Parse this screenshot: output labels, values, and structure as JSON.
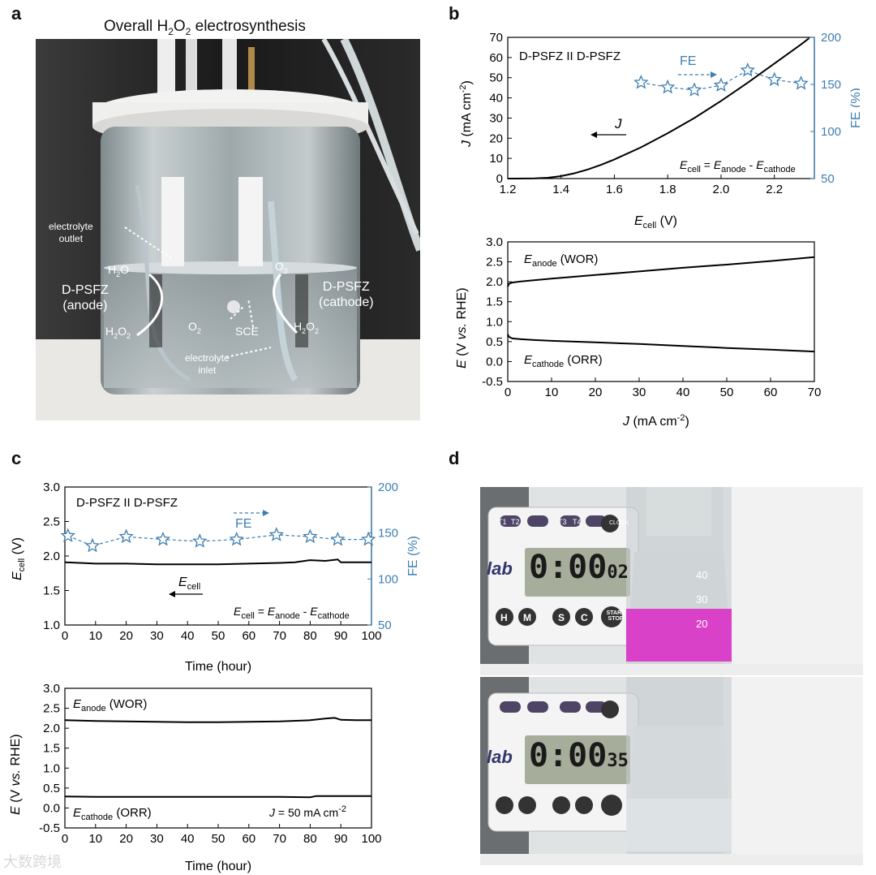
{
  "panel_letters": {
    "a": "a",
    "b": "b",
    "c": "c",
    "d": "d"
  },
  "panel_a": {
    "title_parts": [
      "Overall H",
      "2",
      "O",
      "2",
      " electrosynthesis"
    ],
    "labels": {
      "electrolyte_outlet": [
        "electrolyte",
        "outlet"
      ],
      "electrolyte_inlet": [
        "electrolyte",
        "inlet"
      ],
      "anode": [
        "D-PSFZ",
        "(anode)"
      ],
      "cathode": [
        "D-PSFZ",
        "(cathode)"
      ],
      "h2o": [
        "H",
        "2",
        "O"
      ],
      "o2_top": [
        "O",
        "2"
      ],
      "o2_mid": [
        "O",
        "2"
      ],
      "sce": "SCE",
      "h2o2_left": [
        "H",
        "2",
        "O",
        "2"
      ],
      "h2o2_right": [
        "H",
        "2",
        "O",
        "2"
      ]
    }
  },
  "panel_d": {
    "timer_top": {
      "brand": "lab",
      "digits": "0:00",
      "small": "02",
      "buttons": [
        "T1",
        "T2",
        "T3",
        "T4",
        "CLOCK",
        "H",
        "M",
        "S",
        "C",
        "START STOP"
      ]
    },
    "timer_bottom": {
      "brand": "lab",
      "digits": "0:00",
      "small": "35"
    },
    "bottle_marks": [
      "40",
      "30",
      "20"
    ]
  },
  "chart_data": [
    {
      "id": "b_top",
      "type": "line",
      "title": "D-PSFZ II D-PSFZ",
      "xlabel": [
        "E",
        "cell",
        " (V)"
      ],
      "ylabel": [
        "J",
        " (mA cm",
        "-2",
        ")"
      ],
      "y2label": "FE (%)",
      "xlim": [
        1.2,
        2.35
      ],
      "ylim": [
        0,
        70
      ],
      "y2lim": [
        50,
        200
      ],
      "xticks": [
        "1.2",
        "1.4",
        "1.6",
        "1.8",
        "2.0",
        "2.2"
      ],
      "xtickvals": [
        1.2,
        1.4,
        1.6,
        1.8,
        2.0,
        2.2
      ],
      "yticks": [
        "0",
        "10",
        "20",
        "30",
        "40",
        "50",
        "60",
        "70"
      ],
      "y2ticks": [
        "50",
        "100",
        "150",
        "200"
      ],
      "series": [
        {
          "name": "J",
          "axis": "left",
          "style": "solid",
          "x": [
            1.2,
            1.3,
            1.35,
            1.4,
            1.45,
            1.5,
            1.55,
            1.6,
            1.7,
            1.8,
            1.9,
            2.0,
            2.1,
            2.2,
            2.3,
            2.33
          ],
          "y": [
            0,
            0.1,
            0.4,
            1.2,
            2.6,
            4.5,
            6.8,
            9.5,
            15.5,
            22.5,
            30,
            38.5,
            47.5,
            57,
            66.5,
            69.5
          ]
        },
        {
          "name": "FE",
          "axis": "right",
          "style": "dashed-star",
          "x": [
            1.7,
            1.8,
            1.9,
            2.0,
            2.1,
            2.2,
            2.3
          ],
          "y": [
            152,
            147,
            144,
            149,
            165,
            155,
            151
          ]
        }
      ],
      "annotations": {
        "J": "J",
        "FE": "FE",
        "equation": [
          "E",
          "cell",
          " = ",
          "E",
          "anode",
          " - ",
          "E",
          "cathode"
        ]
      }
    },
    {
      "id": "b_bottom",
      "type": "line",
      "xlabel": [
        "J",
        " (mA cm",
        "-2",
        ")"
      ],
      "ylabel": [
        "E",
        " (V ",
        "vs.",
        " RHE)"
      ],
      "xlim": [
        0,
        70
      ],
      "ylim": [
        -0.5,
        3.0
      ],
      "xticks": [
        "0",
        "10",
        "20",
        "30",
        "40",
        "50",
        "60",
        "70"
      ],
      "yticks": [
        "-0.5",
        "0.0",
        "0.5",
        "1.0",
        "1.5",
        "2.0",
        "2.5",
        "3.0"
      ],
      "series": [
        {
          "name": "E_anode (WOR)",
          "x": [
            0,
            0.3,
            1,
            3,
            6,
            10,
            20,
            30,
            40,
            50,
            60,
            70
          ],
          "y": [
            1.88,
            1.95,
            1.98,
            2.01,
            2.04,
            2.08,
            2.17,
            2.26,
            2.35,
            2.43,
            2.52,
            2.62
          ]
        },
        {
          "name": "E_cathode (ORR)",
          "x": [
            0,
            0.3,
            1,
            3,
            6,
            10,
            20,
            30,
            40,
            50,
            60,
            70
          ],
          "y": [
            0.68,
            0.62,
            0.58,
            0.56,
            0.54,
            0.52,
            0.48,
            0.44,
            0.39,
            0.34,
            0.3,
            0.25
          ]
        }
      ],
      "annotations": {
        "anode": [
          "E",
          "anode",
          " (WOR)"
        ],
        "cathode": [
          "E",
          "cathode",
          " (ORR)"
        ]
      }
    },
    {
      "id": "c_top",
      "type": "line",
      "title": "D-PSFZ II D-PSFZ",
      "xlabel": [
        "Time (hour)"
      ],
      "ylabel": [
        "E",
        "cell",
        " (V)"
      ],
      "y2label": "FE (%)",
      "xlim": [
        0,
        100
      ],
      "ylim": [
        1.0,
        3.0
      ],
      "y2lim": [
        50,
        200
      ],
      "xticks": [
        "0",
        "10",
        "20",
        "30",
        "40",
        "50",
        "60",
        "70",
        "80",
        "90",
        "100"
      ],
      "yticks": [
        "1.0",
        "1.5",
        "2.0",
        "2.5",
        "3.0"
      ],
      "y2ticks": [
        "50",
        "100",
        "150",
        "200"
      ],
      "series": [
        {
          "name": "Ecell",
          "axis": "left",
          "style": "solid",
          "x": [
            0,
            5,
            10,
            20,
            30,
            40,
            50,
            60,
            70,
            75,
            80,
            85,
            89,
            90,
            95,
            100
          ],
          "y": [
            1.91,
            1.9,
            1.89,
            1.89,
            1.88,
            1.88,
            1.88,
            1.89,
            1.9,
            1.91,
            1.94,
            1.93,
            1.95,
            1.91,
            1.91,
            1.91
          ]
        },
        {
          "name": "FE",
          "axis": "right",
          "style": "dashed-star",
          "x": [
            1,
            9,
            20,
            32,
            44,
            56,
            69,
            80,
            89,
            99
          ],
          "y": [
            147,
            136,
            146,
            143,
            141,
            143,
            148,
            146,
            143,
            143
          ]
        }
      ],
      "annotations": {
        "Ecell": [
          "E",
          "cell"
        ],
        "FE": "FE",
        "equation": [
          "E",
          "cell",
          " = ",
          "E",
          "anode",
          " - ",
          "E",
          "cathode"
        ]
      }
    },
    {
      "id": "c_bottom",
      "type": "line",
      "xlabel": [
        "Time (hour)"
      ],
      "ylabel": [
        "E",
        " (V ",
        "vs.",
        " RHE)"
      ],
      "xlim": [
        0,
        100
      ],
      "ylim": [
        -0.5,
        3.0
      ],
      "xticks": [
        "0",
        "10",
        "20",
        "30",
        "40",
        "50",
        "60",
        "70",
        "80",
        "90",
        "100"
      ],
      "yticks": [
        "-0.5",
        "0.0",
        "0.5",
        "1.0",
        "1.5",
        "2.0",
        "2.5",
        "3.0"
      ],
      "series": [
        {
          "name": "E_anode (WOR)",
          "x": [
            0,
            10,
            20,
            30,
            40,
            50,
            60,
            70,
            80,
            85,
            88,
            90,
            95,
            100
          ],
          "y": [
            2.2,
            2.18,
            2.17,
            2.16,
            2.15,
            2.15,
            2.16,
            2.17,
            2.2,
            2.24,
            2.26,
            2.21,
            2.2,
            2.2
          ]
        },
        {
          "name": "E_cathode (ORR)",
          "x": [
            0,
            10,
            20,
            30,
            40,
            50,
            60,
            70,
            80,
            82,
            90,
            100
          ],
          "y": [
            0.29,
            0.28,
            0.28,
            0.28,
            0.28,
            0.28,
            0.28,
            0.28,
            0.27,
            0.3,
            0.3,
            0.3
          ]
        }
      ],
      "annotations": {
        "anode": [
          "E",
          "anode",
          " (WOR)"
        ],
        "cathode": [
          "E",
          "cathode",
          " (ORR)"
        ],
        "condition": [
          "J",
          " = 50 mA cm",
          "-2"
        ]
      }
    }
  ],
  "watermark": "大数跨境"
}
